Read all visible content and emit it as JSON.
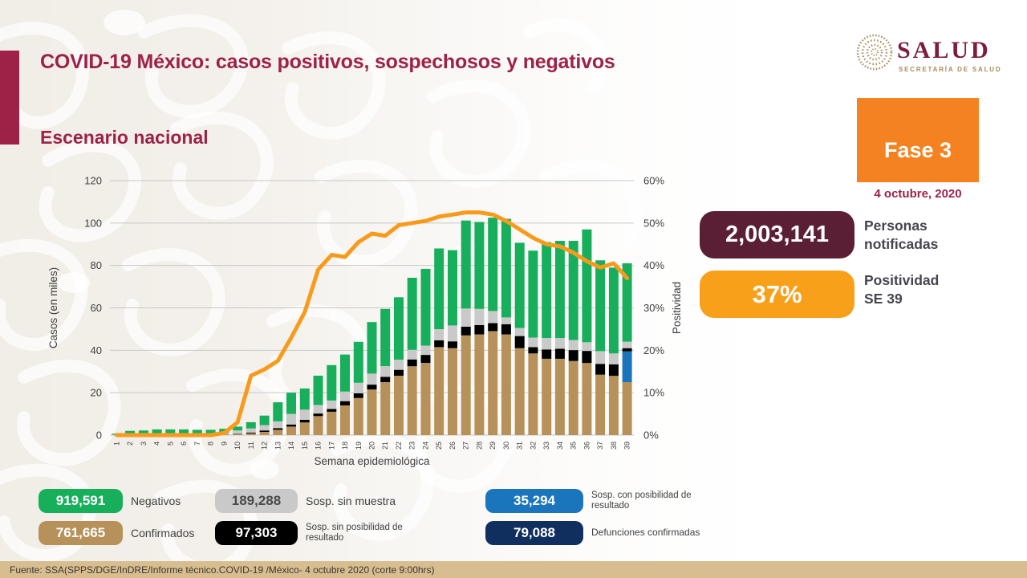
{
  "header": {
    "title": "COVID-19 México: casos positivos, sospechosos y negativos",
    "subtitle": "Escenario nacional",
    "logo": {
      "name": "SALUD",
      "tagline": "SECRETARÍA DE SALUD"
    }
  },
  "phase": {
    "label": "Fase 3",
    "date": "4 octubre, 2020"
  },
  "stats": [
    {
      "value": "2,003,141",
      "label_line1": "Personas",
      "label_line2": "notificadas",
      "color": "#5b1f35"
    },
    {
      "value": "37%",
      "label_line1": "Positividad",
      "label_line2": "SE 39",
      "color": "#f9a01b"
    }
  ],
  "legend": [
    {
      "value": "919,591",
      "label": "Negativos",
      "color": "#17af5b",
      "text_color": "#ffffff"
    },
    {
      "value": "761,665",
      "label": "Confirmados",
      "color": "#b7915a",
      "text_color": "#ffffff"
    },
    {
      "value": "189,288",
      "label": "Sosp. sin muestra",
      "color": "#c9c9c9",
      "text_color": "#4a4a4a"
    },
    {
      "value": "97,303",
      "label": "Sosp. sin posibilidad de resultado",
      "color": "#000000",
      "text_color": "#ffffff"
    },
    {
      "value": "35,294",
      "label": "Sosp. con posibilidad de resultado",
      "color": "#1b75bc",
      "text_color": "#ffffff"
    },
    {
      "value": "79,088",
      "label": "Defunciones confirmadas",
      "color": "#102e5e",
      "text_color": "#ffffff"
    }
  ],
  "footer": {
    "source": "Fuente: SSA(SPPS/DGE/InDRE/Informe técnico.COVID-19 /México- 4 octubre 2020 (corte 9:00hrs)"
  },
  "colors": {
    "brand_red": "#9d2248",
    "phase_orange": "#f58220",
    "footer_tan": "#d8bd90",
    "axis_text": "#3f3f3f",
    "gridline": "#c8c8c8"
  },
  "chart_data": {
    "type": "bar",
    "subtype": "stacked-bars-with-line",
    "xlabel": "Semana epidemiológica",
    "ylabel_left": "Casos (en miles)",
    "ylabel_right": "Positividad",
    "ylim_left": [
      0,
      120
    ],
    "ylim_right_pct": [
      0,
      60
    ],
    "yticks_left": [
      0,
      20,
      40,
      60,
      80,
      100,
      120
    ],
    "yticks_right": [
      "0%",
      "10%",
      "20%",
      "30%",
      "40%",
      "50%",
      "60%"
    ],
    "grid": true,
    "legend_position": "bottom-external",
    "x": [
      1,
      2,
      3,
      4,
      5,
      6,
      7,
      8,
      9,
      10,
      11,
      12,
      13,
      14,
      15,
      16,
      17,
      18,
      19,
      20,
      21,
      22,
      23,
      24,
      25,
      26,
      27,
      28,
      29,
      30,
      31,
      32,
      33,
      34,
      35,
      36,
      37,
      38,
      39
    ],
    "series": [
      {
        "name": "Confirmados",
        "type": "bar",
        "color": "#b7915a",
        "values": [
          0.2,
          0.3,
          0.3,
          0.4,
          0.4,
          0.4,
          0.3,
          0.3,
          0.4,
          0.5,
          0.8,
          1.5,
          2.5,
          4,
          6,
          9,
          11,
          14,
          17.5,
          21.5,
          25,
          28,
          32.5,
          34,
          41.5,
          41,
          47,
          47.5,
          49,
          47.5,
          41,
          38.5,
          36,
          36,
          35,
          34,
          28.5,
          28,
          25
        ]
      },
      {
        "name": "Sosp. con posibilidad de resultado",
        "type": "bar",
        "color": "#1b75bc",
        "values": [
          0,
          0,
          0,
          0,
          0,
          0,
          0,
          0,
          0,
          0,
          0,
          0,
          0,
          0,
          0,
          0,
          0,
          0,
          0,
          0,
          0,
          0,
          0,
          0,
          0,
          0,
          0,
          0,
          0,
          0,
          0,
          0,
          0,
          0,
          0,
          0,
          0,
          0,
          14.5
        ]
      },
      {
        "name": "Sosp. sin posibilidad de resultado",
        "type": "bar",
        "color": "#000000",
        "values": [
          0,
          0,
          0,
          0,
          0,
          0,
          0,
          0,
          0,
          0.2,
          0.4,
          0.7,
          0.8,
          1,
          1.2,
          1.2,
          1.3,
          2,
          2.2,
          2.3,
          2.5,
          2.8,
          3.2,
          3.8,
          3.2,
          3.2,
          4.1,
          4.4,
          3.8,
          4.8,
          5.7,
          3,
          4.4,
          4.7,
          5.1,
          5.7,
          5.1,
          5.4,
          1.5
        ]
      },
      {
        "name": "Sosp. sin muestra",
        "type": "bar",
        "color": "#c9c9c9",
        "values": [
          0.1,
          0.3,
          0.3,
          0.4,
          0.4,
          0.4,
          0.4,
          0.4,
          0.6,
          1.5,
          2,
          2.5,
          3.2,
          5,
          4.8,
          4,
          4,
          4.5,
          5,
          5.2,
          5,
          4.8,
          4.5,
          4.4,
          5.2,
          7.5,
          8.6,
          7.6,
          5.7,
          3.2,
          3.8,
          4.5,
          5.4,
          5.1,
          4.7,
          4.1,
          6,
          5.1,
          3
        ]
      },
      {
        "name": "Negativos",
        "type": "bar",
        "color": "#17af5b",
        "values": [
          0.4,
          1.4,
          1.6,
          1.9,
          1.9,
          1.9,
          1.8,
          1.8,
          2,
          1.8,
          2.9,
          4.5,
          9,
          10,
          10,
          13.8,
          16.7,
          17.5,
          19.3,
          24.3,
          27,
          29.4,
          34,
          36.2,
          38.1,
          35.5,
          41.5,
          41,
          44,
          46.5,
          40.2,
          41,
          45.2,
          45.8,
          46.8,
          53.2,
          42.8,
          40.5,
          37
        ]
      },
      {
        "name": "Positividad",
        "type": "line",
        "axis": "right",
        "color": "#f89b1c",
        "values_pct": [
          0,
          0,
          0,
          0,
          0,
          0,
          0,
          0,
          0.5,
          3,
          14,
          15.5,
          17.5,
          23,
          29,
          39,
          42.5,
          42,
          45.5,
          47.5,
          47,
          49.5,
          50,
          50.5,
          51.5,
          52,
          52.5,
          52.5,
          52,
          50.5,
          48.5,
          46.5,
          45,
          44.5,
          43,
          41,
          39.5,
          40.5,
          37
        ]
      }
    ]
  }
}
